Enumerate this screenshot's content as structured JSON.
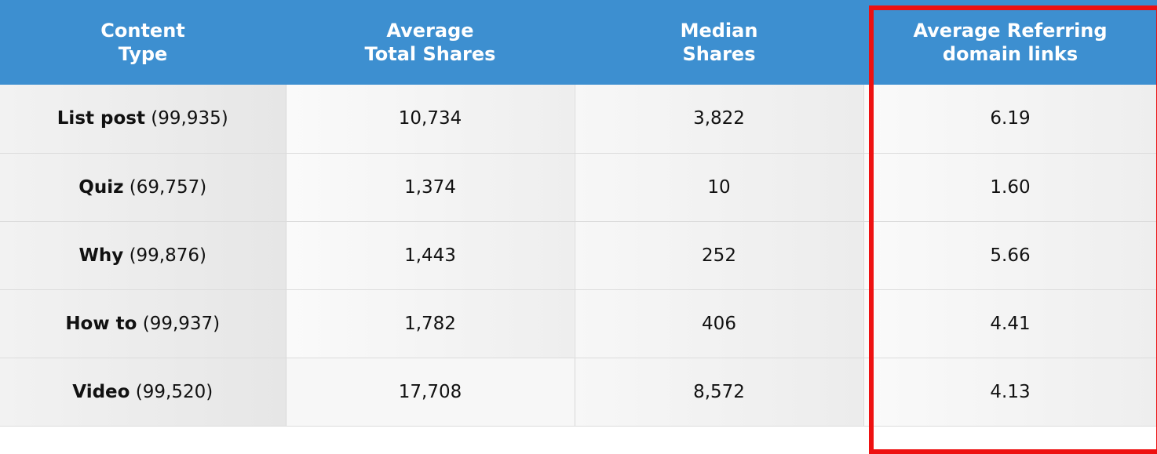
{
  "chart_data": {
    "type": "table",
    "columns": [
      {
        "line1": "Content",
        "line2": "Type"
      },
      {
        "line1": "Average",
        "line2": "Total Shares"
      },
      {
        "line1": "Median",
        "line2": "Shares"
      },
      {
        "line1": "Average Referring",
        "line2": "domain links"
      }
    ],
    "rows": [
      {
        "type": "List post",
        "count": "(99,935)",
        "avg_total_shares": "10,734",
        "median_shares": "3,822",
        "avg_referring_domain_links": "6.19"
      },
      {
        "type": "Quiz",
        "count": "(69,757)",
        "avg_total_shares": "1,374",
        "median_shares": "10",
        "avg_referring_domain_links": "1.60"
      },
      {
        "type": "Why",
        "count": "(99,876)",
        "avg_total_shares": "1,443",
        "median_shares": "252",
        "avg_referring_domain_links": "5.66"
      },
      {
        "type": "How to",
        "count": "(99,937)",
        "avg_total_shares": "1,782",
        "median_shares": "406",
        "avg_referring_domain_links": "4.41"
      },
      {
        "type": "Video",
        "count": "(99,520)",
        "avg_total_shares": "17,708",
        "median_shares": "8,572",
        "avg_referring_domain_links": "4.13"
      }
    ],
    "highlighted_column": "Average Referring domain links"
  },
  "colors": {
    "header_bg": "#3d8fd0",
    "header_text": "#ffffff",
    "highlight_border": "#ee1111"
  }
}
